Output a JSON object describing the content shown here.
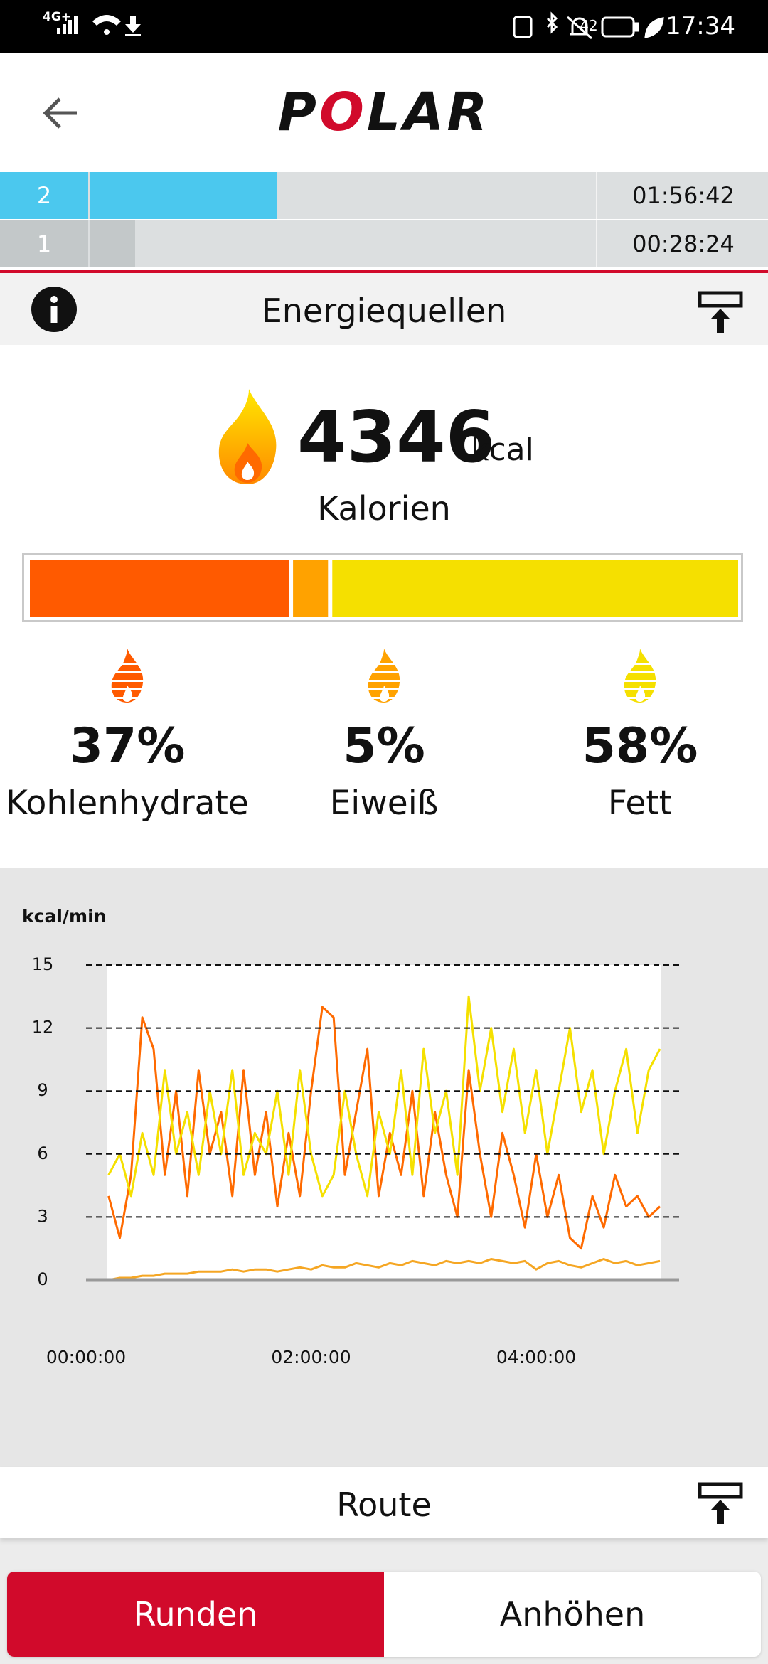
{
  "status_bar": {
    "network": "4G+",
    "battery": "42",
    "time": "17:34"
  },
  "header": {
    "logo": "POLAR"
  },
  "laps": [
    {
      "number": "2",
      "time": "01:56:42",
      "color": "#4bc8ee"
    },
    {
      "number": "1",
      "time": "00:28:24",
      "color": "#c3c8c9"
    }
  ],
  "energy": {
    "title": "Energiequellen",
    "calories": 4346,
    "unit": "kcal",
    "calories_label": "Kalorien",
    "sources": [
      {
        "value": 37,
        "label": "37%",
        "name": "Kohlenhydrate",
        "color": "#ff5a00"
      },
      {
        "value": 5,
        "label": "5%",
        "name": "Eiweiß",
        "color": "#ffa200"
      },
      {
        "value": 58,
        "label": "58%",
        "name": "Fett",
        "color": "#f5e000"
      }
    ]
  },
  "chart_data": {
    "type": "line",
    "ylabel": "kcal/min",
    "x": [
      0.2,
      0.3,
      0.4,
      0.5,
      0.6,
      0.7,
      0.8,
      0.9,
      1.0,
      1.1,
      1.2,
      1.3,
      1.4,
      1.5,
      1.6,
      1.7,
      1.8,
      1.9,
      2.0,
      2.1,
      2.2,
      2.3,
      2.4,
      2.5,
      2.6,
      2.7,
      2.8,
      2.9,
      3.0,
      3.1,
      3.2,
      3.3,
      3.4,
      3.5,
      3.6,
      3.7,
      3.8,
      3.9,
      4.0,
      4.1,
      4.2,
      4.3,
      4.4,
      4.5,
      4.6,
      4.7,
      4.8,
      4.9,
      5.0,
      5.1
    ],
    "xlim": [
      0,
      5.27
    ],
    "xticks": [
      {
        "value": 0,
        "label": "00:00:00"
      },
      {
        "value": 2,
        "label": "02:00:00"
      },
      {
        "value": 4,
        "label": "04:00:00"
      }
    ],
    "ylim": [
      0,
      15
    ],
    "yticks": [
      0,
      3,
      6,
      9,
      12,
      15
    ],
    "grid": true,
    "series": [
      {
        "color": "#ff6a00",
        "values": [
          4,
          2,
          5,
          12.5,
          11,
          5,
          9,
          4,
          10,
          6,
          8,
          4,
          10,
          5,
          8,
          3.5,
          7,
          4,
          9,
          13,
          12.5,
          5,
          8,
          11,
          4,
          7,
          5,
          9,
          4,
          8,
          5,
          3,
          10,
          6,
          3,
          7,
          5,
          2.5,
          6,
          3,
          5,
          2,
          1.5,
          4,
          2.5,
          5,
          3.5,
          4,
          3,
          3.5
        ]
      },
      {
        "color": "#f5e000",
        "values": [
          5,
          6,
          4,
          7,
          5,
          10,
          6,
          8,
          5,
          9,
          6,
          10,
          5,
          7,
          6,
          9,
          5,
          10,
          6,
          4,
          5,
          9,
          6,
          4,
          8,
          6,
          10,
          5,
          11,
          7,
          9,
          5,
          13.5,
          9,
          12,
          8,
          11,
          7,
          10,
          6,
          9,
          12,
          8,
          10,
          6,
          9,
          11,
          7,
          10,
          11
        ]
      },
      {
        "color": "#f5a623",
        "values": [
          0,
          0.1,
          0.1,
          0.2,
          0.2,
          0.3,
          0.3,
          0.3,
          0.4,
          0.4,
          0.4,
          0.5,
          0.4,
          0.5,
          0.5,
          0.4,
          0.5,
          0.6,
          0.5,
          0.7,
          0.6,
          0.6,
          0.8,
          0.7,
          0.6,
          0.8,
          0.7,
          0.9,
          0.8,
          0.7,
          0.9,
          0.8,
          0.9,
          0.8,
          1.0,
          0.9,
          0.8,
          0.9,
          0.5,
          0.8,
          0.9,
          0.7,
          0.6,
          0.8,
          1.0,
          0.8,
          0.9,
          0.7,
          0.8,
          0.9
        ]
      }
    ]
  },
  "route": {
    "title": "Route"
  },
  "tabs": [
    {
      "label": "Runden",
      "active": true
    },
    {
      "label": "Anhöhen",
      "active": false
    }
  ]
}
